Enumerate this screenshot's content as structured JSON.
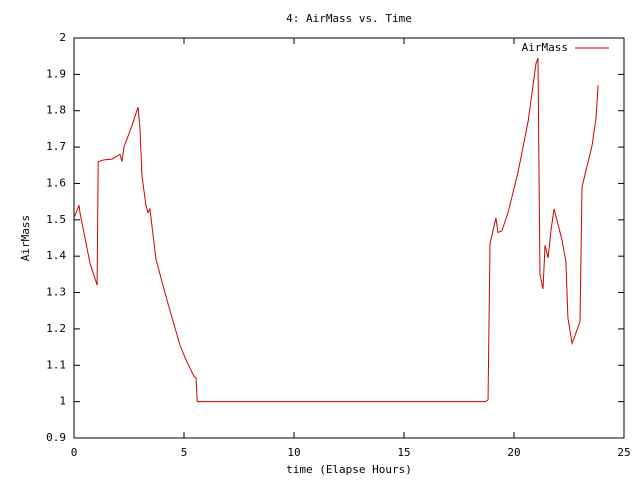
{
  "chart_data": {
    "type": "line",
    "title": "4: AirMass vs. Time",
    "x_label": "time (Elapse Hours)",
    "y_label": "AirMass",
    "x": [
      0,
      0.23,
      0.27,
      0.73,
      1.0,
      1.05,
      1.1,
      1.36,
      1.73,
      2.09,
      2.18,
      2.27,
      2.64,
      2.91,
      3.0,
      3.09,
      3.27,
      3.36,
      3.45,
      3.73,
      4.27,
      4.82,
      5.09,
      5.45,
      5.55,
      5.6,
      18.7,
      18.82,
      18.91,
      19.18,
      19.27,
      19.45,
      19.73,
      20.18,
      20.64,
      21.0,
      21.09,
      21.18,
      21.32,
      21.41,
      21.55,
      21.68,
      21.82,
      22.18,
      22.36,
      22.45,
      22.64,
      23.0,
      23.09,
      23.55,
      23.73,
      23.82
    ],
    "series": [
      {
        "name": "AirMass",
        "color": "#cc0000",
        "values": [
          1.505,
          1.54,
          1.52,
          1.38,
          1.33,
          1.32,
          1.66,
          1.665,
          1.667,
          1.68,
          1.66,
          1.7,
          1.76,
          1.81,
          1.75,
          1.62,
          1.54,
          1.52,
          1.53,
          1.39,
          1.27,
          1.155,
          1.115,
          1.07,
          1.065,
          1.0,
          1.0,
          1.005,
          1.435,
          1.505,
          1.465,
          1.47,
          1.52,
          1.63,
          1.77,
          1.93,
          1.945,
          1.35,
          1.31,
          1.43,
          1.395,
          1.47,
          1.53,
          1.445,
          1.385,
          1.23,
          1.16,
          1.22,
          1.59,
          1.705,
          1.78,
          1.87
        ]
      }
    ],
    "xlim": [
      0,
      25
    ],
    "xticks": [
      0,
      5,
      10,
      15,
      20,
      25
    ],
    "ylim": [
      0.9,
      2
    ],
    "yticks": [
      0.9,
      1,
      1.1,
      1.2,
      1.3,
      1.4,
      1.5,
      1.6,
      1.7,
      1.8,
      1.9,
      2
    ],
    "legend": "upper right",
    "grid": false
  }
}
